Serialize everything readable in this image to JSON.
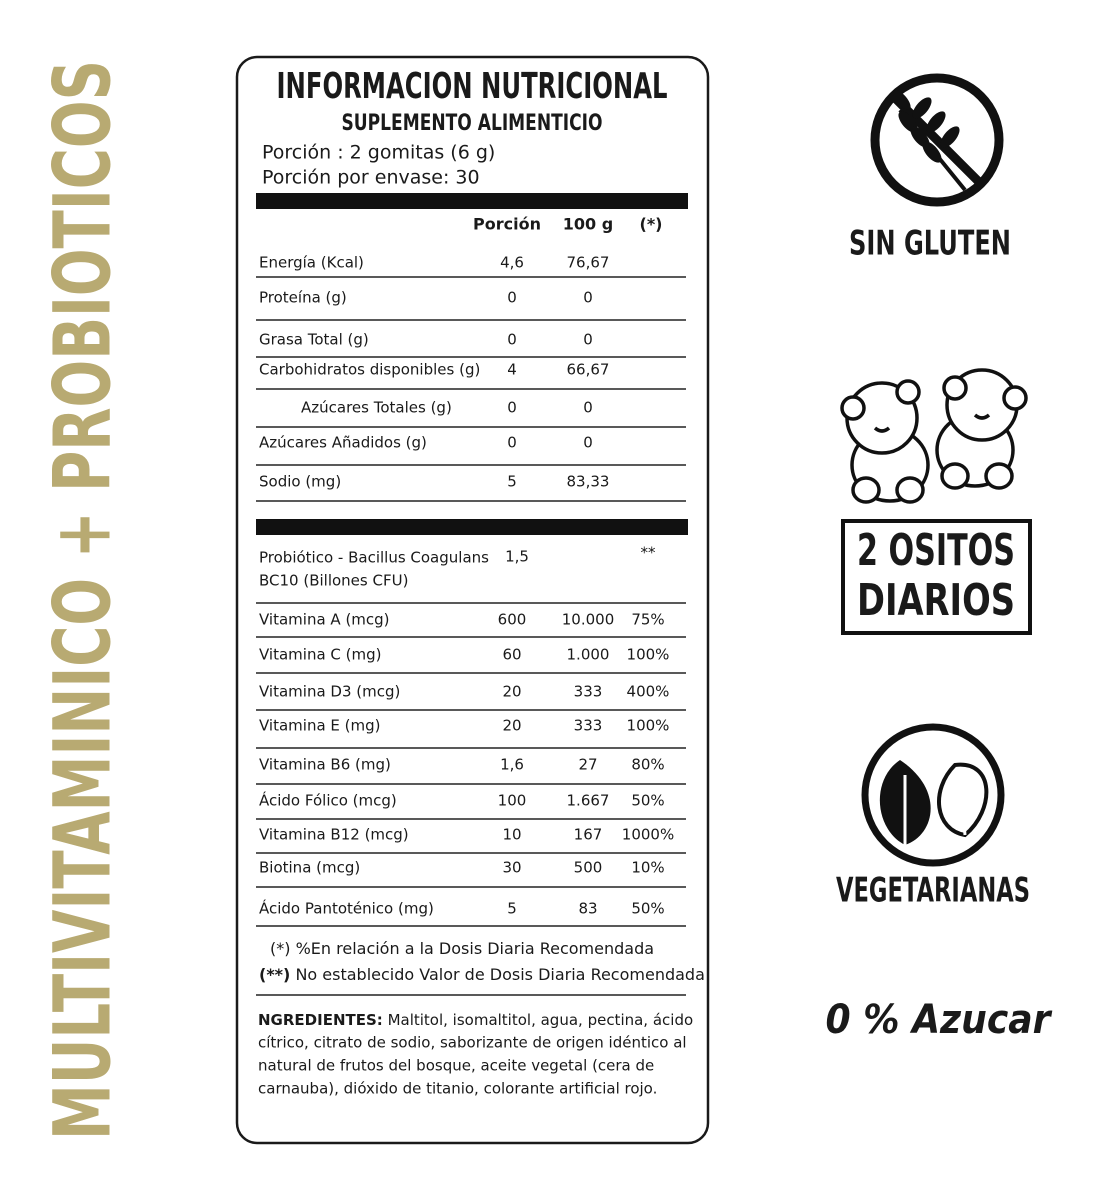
{
  "side_title": "MULTIVITAMINICO + PROBIOTICOS",
  "label": {
    "title": "INFORMACION NUTRICIONAL",
    "subtitle": "SUPLEMENTO ALIMENTICIO",
    "serving": "Porción : 2 gomitas (6 g)",
    "servings_per_container": "Porción por envase: 30",
    "columns": [
      "Porción",
      "100 g",
      "(*)"
    ],
    "rows": [
      {
        "name": "Energía (Kcal)",
        "portion": "4,6",
        "per100": "76,67"
      },
      {
        "name": "Proteína (g)",
        "portion": "0",
        "per100": "0"
      },
      {
        "name": "Grasa Total (g)",
        "portion": "0",
        "per100": "0"
      },
      {
        "name": "Carbohidratos disponibles (g)",
        "portion": "4",
        "per100": "66,67"
      },
      {
        "name": "Azúcares Totales (g)",
        "portion": "0",
        "per100": "0"
      },
      {
        "name": "Azúcares Añadidos (g)",
        "portion": "0",
        "per100": "0"
      },
      {
        "name": "Sodio (mg)",
        "portion": "5",
        "per100": "83,33"
      }
    ],
    "probiotic": {
      "name_lines": [
        "Probiótico - Bacillus Coagulans",
        "BC10 (Billones CFU)"
      ],
      "portion": "1,5",
      "dv": "**"
    },
    "vitamins": [
      {
        "name": "Vitamina A (mcg)",
        "portion": "600",
        "per100": "10.000",
        "dv": "75%"
      },
      {
        "name": "Vitamina C (mg)",
        "portion": "60",
        "per100": "1.000",
        "dv": "100%"
      },
      {
        "name": "Vitamina D3 (mcg)",
        "portion": "20",
        "per100": "333",
        "dv": "400%"
      },
      {
        "name": "Vitamina E (mg)",
        "portion": "20",
        "per100": "333",
        "dv": "100%"
      },
      {
        "name": "Vitamina B6 (mg)",
        "portion": "1,6",
        "per100": "27",
        "dv": "80%"
      },
      {
        "name": "Ácido Fólico (mcg)",
        "portion": "100",
        "per100": "1.667",
        "dv": "50%"
      },
      {
        "name": "Vitamina B12 (mcg)",
        "portion": "10",
        "per100": "167",
        "dv": "1000%"
      },
      {
        "name": "Biotina (mcg)",
        "portion": "30",
        "per100": "500",
        "dv": "10%"
      },
      {
        "name": "Ácido Pantoténico (mg)",
        "portion": "5",
        "per100": "83",
        "dv": "50%"
      }
    ],
    "notes": [
      {
        "mark": "(*)",
        "text": "%En relación a la Dosis Diaria Recomendada"
      },
      {
        "mark": "(**)",
        "text": "No establecido Valor de Dosis Diaria Recomendada"
      }
    ],
    "ingredients_label": "NGREDIENTES:",
    "ingredients_lines": [
      "Maltitol, isomaltitol, agua, pectina, ácido",
      "cítrico, citrato de sodio, saborizante de origen idéntico al",
      "natural de frutos del bosque, aceite vegetal (cera de",
      "carnauba), dióxido de titanio, colorante artificial rojo."
    ]
  },
  "badges": {
    "gluten": "SIN GLUTEN",
    "bears_lines": [
      "2 OSITOS",
      "DIARIOS"
    ],
    "vegetarian": "VEGETARIANAS",
    "sugar": "0 % Azucar"
  }
}
